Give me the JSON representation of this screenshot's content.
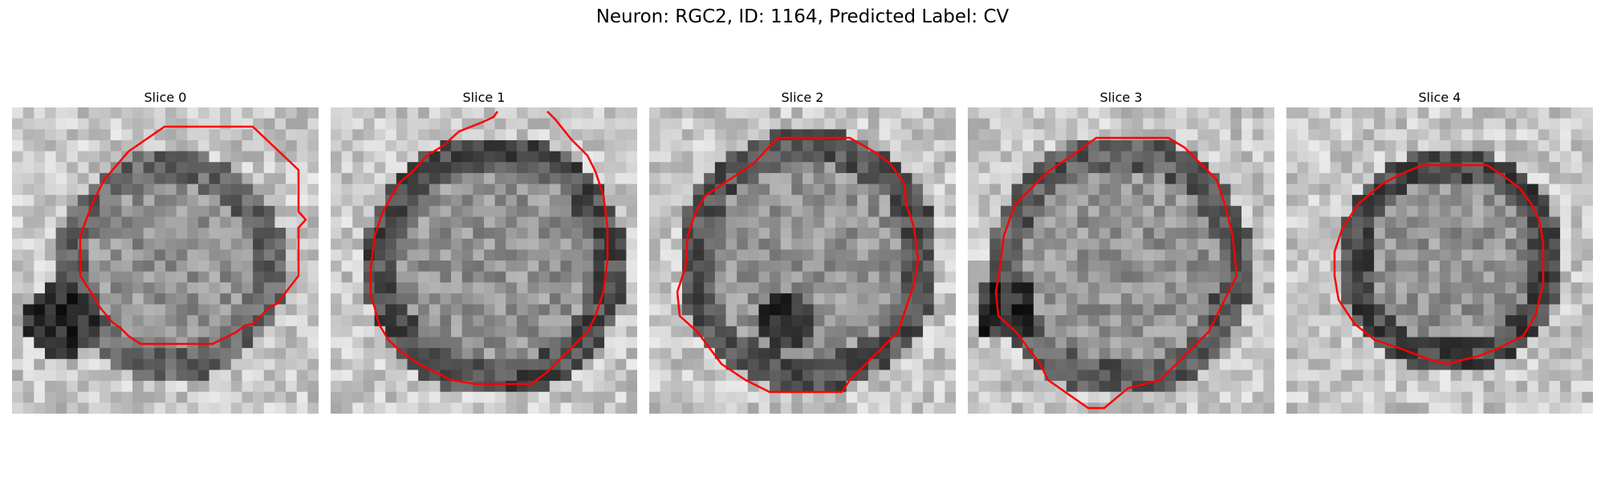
{
  "figure": {
    "title": "Neuron: RGC2, ID: 1164, Predicted Label: CV"
  },
  "panels": [
    {
      "title": "Slice 0"
    },
    {
      "title": "Slice 1"
    },
    {
      "title": "Slice 2"
    },
    {
      "title": "Slice 3"
    },
    {
      "title": "Slice 4"
    }
  ],
  "colors": {
    "contour": "#ff0000",
    "background": "#ffffff"
  }
}
